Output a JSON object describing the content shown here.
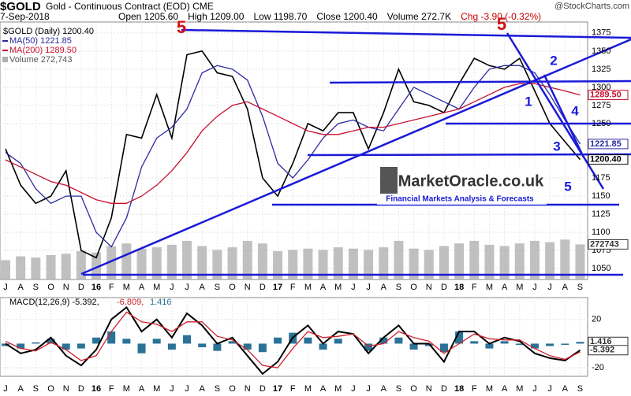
{
  "chart_data": {
    "type": "line",
    "title": "$GOLD",
    "subtitle": "Gold - Continuous Contract (EOD) CME",
    "source": "@StockCharts.com",
    "date": "7-Sep-2018",
    "quote": [
      "Open 1205.60",
      "High 1209.00",
      "Low 1198.70",
      "Close 1200.40",
      "Volume 272.7K",
      "Chg -3.90 (-0.32%)"
    ],
    "categories": [
      "J",
      "A",
      "S",
      "O",
      "N",
      "D",
      "16",
      "F",
      "M",
      "A",
      "M",
      "J",
      "J",
      "A",
      "S",
      "O",
      "N",
      "D",
      "17",
      "F",
      "M",
      "A",
      "M",
      "J",
      "J",
      "A",
      "S",
      "O",
      "N",
      "D",
      "18",
      "F",
      "M",
      "A",
      "M",
      "J",
      "J",
      "A",
      "S"
    ],
    "series": [
      {
        "name": "$GOLD (Daily) 1200.40",
        "color": "#000000",
        "values": [
          1215,
          1165,
          1140,
          1150,
          1185,
          1075,
          1065,
          1120,
          1235,
          1230,
          1290,
          1230,
          1345,
          1350,
          1320,
          1315,
          1270,
          1175,
          1150,
          1195,
          1250,
          1240,
          1265,
          1265,
          1215,
          1265,
          1325,
          1280,
          1275,
          1265,
          1305,
          1340,
          1330,
          1325,
          1340,
          1295,
          1250,
          1225,
          1200.4
        ]
      },
      {
        "name": "MA(50) 1221.85",
        "color": "#2b2ba0",
        "values": [
          1210,
          1195,
          1160,
          1140,
          1150,
          1150,
          1100,
          1080,
          1120,
          1190,
          1230,
          1245,
          1270,
          1320,
          1330,
          1325,
          1310,
          1260,
          1195,
          1175,
          1200,
          1230,
          1250,
          1255,
          1245,
          1240,
          1270,
          1300,
          1290,
          1280,
          1270,
          1300,
          1325,
          1330,
          1330,
          1320,
          1290,
          1255,
          1221.85
        ]
      },
      {
        "name": "MA(200) 1289.50",
        "color": "#c8102e",
        "values": [
          1200,
          1190,
          1180,
          1170,
          1165,
          1155,
          1145,
          1140,
          1140,
          1150,
          1165,
          1185,
          1210,
          1240,
          1260,
          1275,
          1280,
          1270,
          1260,
          1250,
          1240,
          1235,
          1235,
          1240,
          1245,
          1245,
          1250,
          1255,
          1260,
          1265,
          1270,
          1280,
          1290,
          1300,
          1305,
          1305,
          1300,
          1295,
          1289.5
        ]
      }
    ],
    "ylim": [
      1035,
      1390
    ],
    "yticks": [
      1050,
      1075,
      1100,
      1125,
      1150,
      1175,
      1250,
      1275,
      1300,
      1325,
      1350,
      1375
    ],
    "grid": true,
    "markers": [
      {
        "value": 1289.5,
        "label": "1289.50",
        "color": "#c8102e"
      },
      {
        "value": 1221.85,
        "label": "1221.85",
        "color": "#2b2ba0"
      },
      {
        "value": 1200.4,
        "label": "1200.40",
        "color": "#000000"
      }
    ],
    "volume": {
      "name": "Volume 272,743",
      "color": "#b0b0b0",
      "ylim": [
        0,
        2000000
      ],
      "values": [
        150000,
        180000,
        170000,
        190000,
        200000,
        220000,
        210000,
        260000,
        280000,
        240000,
        250000,
        270000,
        300000,
        260000,
        230000,
        250000,
        300000,
        280000,
        220000,
        230000,
        240000,
        230000,
        250000,
        240000,
        230000,
        250000,
        300000,
        240000,
        230000,
        260000,
        280000,
        300000,
        270000,
        260000,
        280000,
        300000,
        290000,
        310000,
        272743
      ],
      "marker": {
        "value": 272743,
        "label": "272743"
      }
    },
    "macd": {
      "legend": [
        "MACD(12,26,9) -5.392,",
        "-6.809,",
        "1.416"
      ],
      "ylim": [
        -27,
        38
      ],
      "yticks": [
        -20,
        20
      ],
      "series": [
        {
          "color": "#000000",
          "values": [
            0,
            -8,
            -5,
            5,
            -10,
            -18,
            -5,
            20,
            30,
            10,
            20,
            5,
            25,
            15,
            0,
            5,
            -10,
            -25,
            -15,
            5,
            15,
            0,
            10,
            8,
            -8,
            5,
            15,
            0,
            0,
            -15,
            10,
            10,
            0,
            5,
            2,
            -8,
            -12,
            -14,
            -5.392
          ]
        },
        {
          "color": "#d0202a",
          "values": [
            2,
            -4,
            -6,
            1,
            -5,
            -14,
            -10,
            10,
            26,
            18,
            16,
            10,
            18,
            18,
            6,
            3,
            -5,
            -18,
            -20,
            -4,
            10,
            5,
            6,
            8,
            -2,
            0,
            10,
            5,
            2,
            -8,
            0,
            8,
            4,
            3,
            3,
            -4,
            -10,
            -13,
            -6.809
          ]
        }
      ],
      "histogram": {
        "color": "#2a7296",
        "values": [
          -2,
          -4,
          1,
          4,
          -5,
          -4,
          5,
          10,
          4,
          -8,
          4,
          -5,
          7,
          -3,
          -6,
          2,
          -5,
          -7,
          5,
          9,
          5,
          -5,
          4,
          0,
          -6,
          5,
          5,
          -5,
          -2,
          -7,
          10,
          2,
          -4,
          2,
          -1,
          -4,
          -2,
          -1,
          1.416
        ]
      },
      "markers": [
        {
          "value": 1.416,
          "label": "1.416"
        },
        {
          "value": -5.392,
          "label": "-5.392"
        }
      ]
    },
    "annotations": [
      {
        "text": "5",
        "color": "#d01010"
      },
      {
        "text": "5",
        "color": "#d01010"
      },
      {
        "text": "2",
        "color": "#1a1ad8"
      },
      {
        "text": "1",
        "color": "#1a1ad8"
      },
      {
        "text": "4",
        "color": "#1a1ad8"
      },
      {
        "text": "3",
        "color": "#1a1ad8"
      },
      {
        "text": "5",
        "color": "#1a1ad8"
      }
    ],
    "watermark": {
      "title": "MarketOracle.co.uk",
      "subtitle": "Financial Markets Analysis & Forecasts"
    }
  }
}
